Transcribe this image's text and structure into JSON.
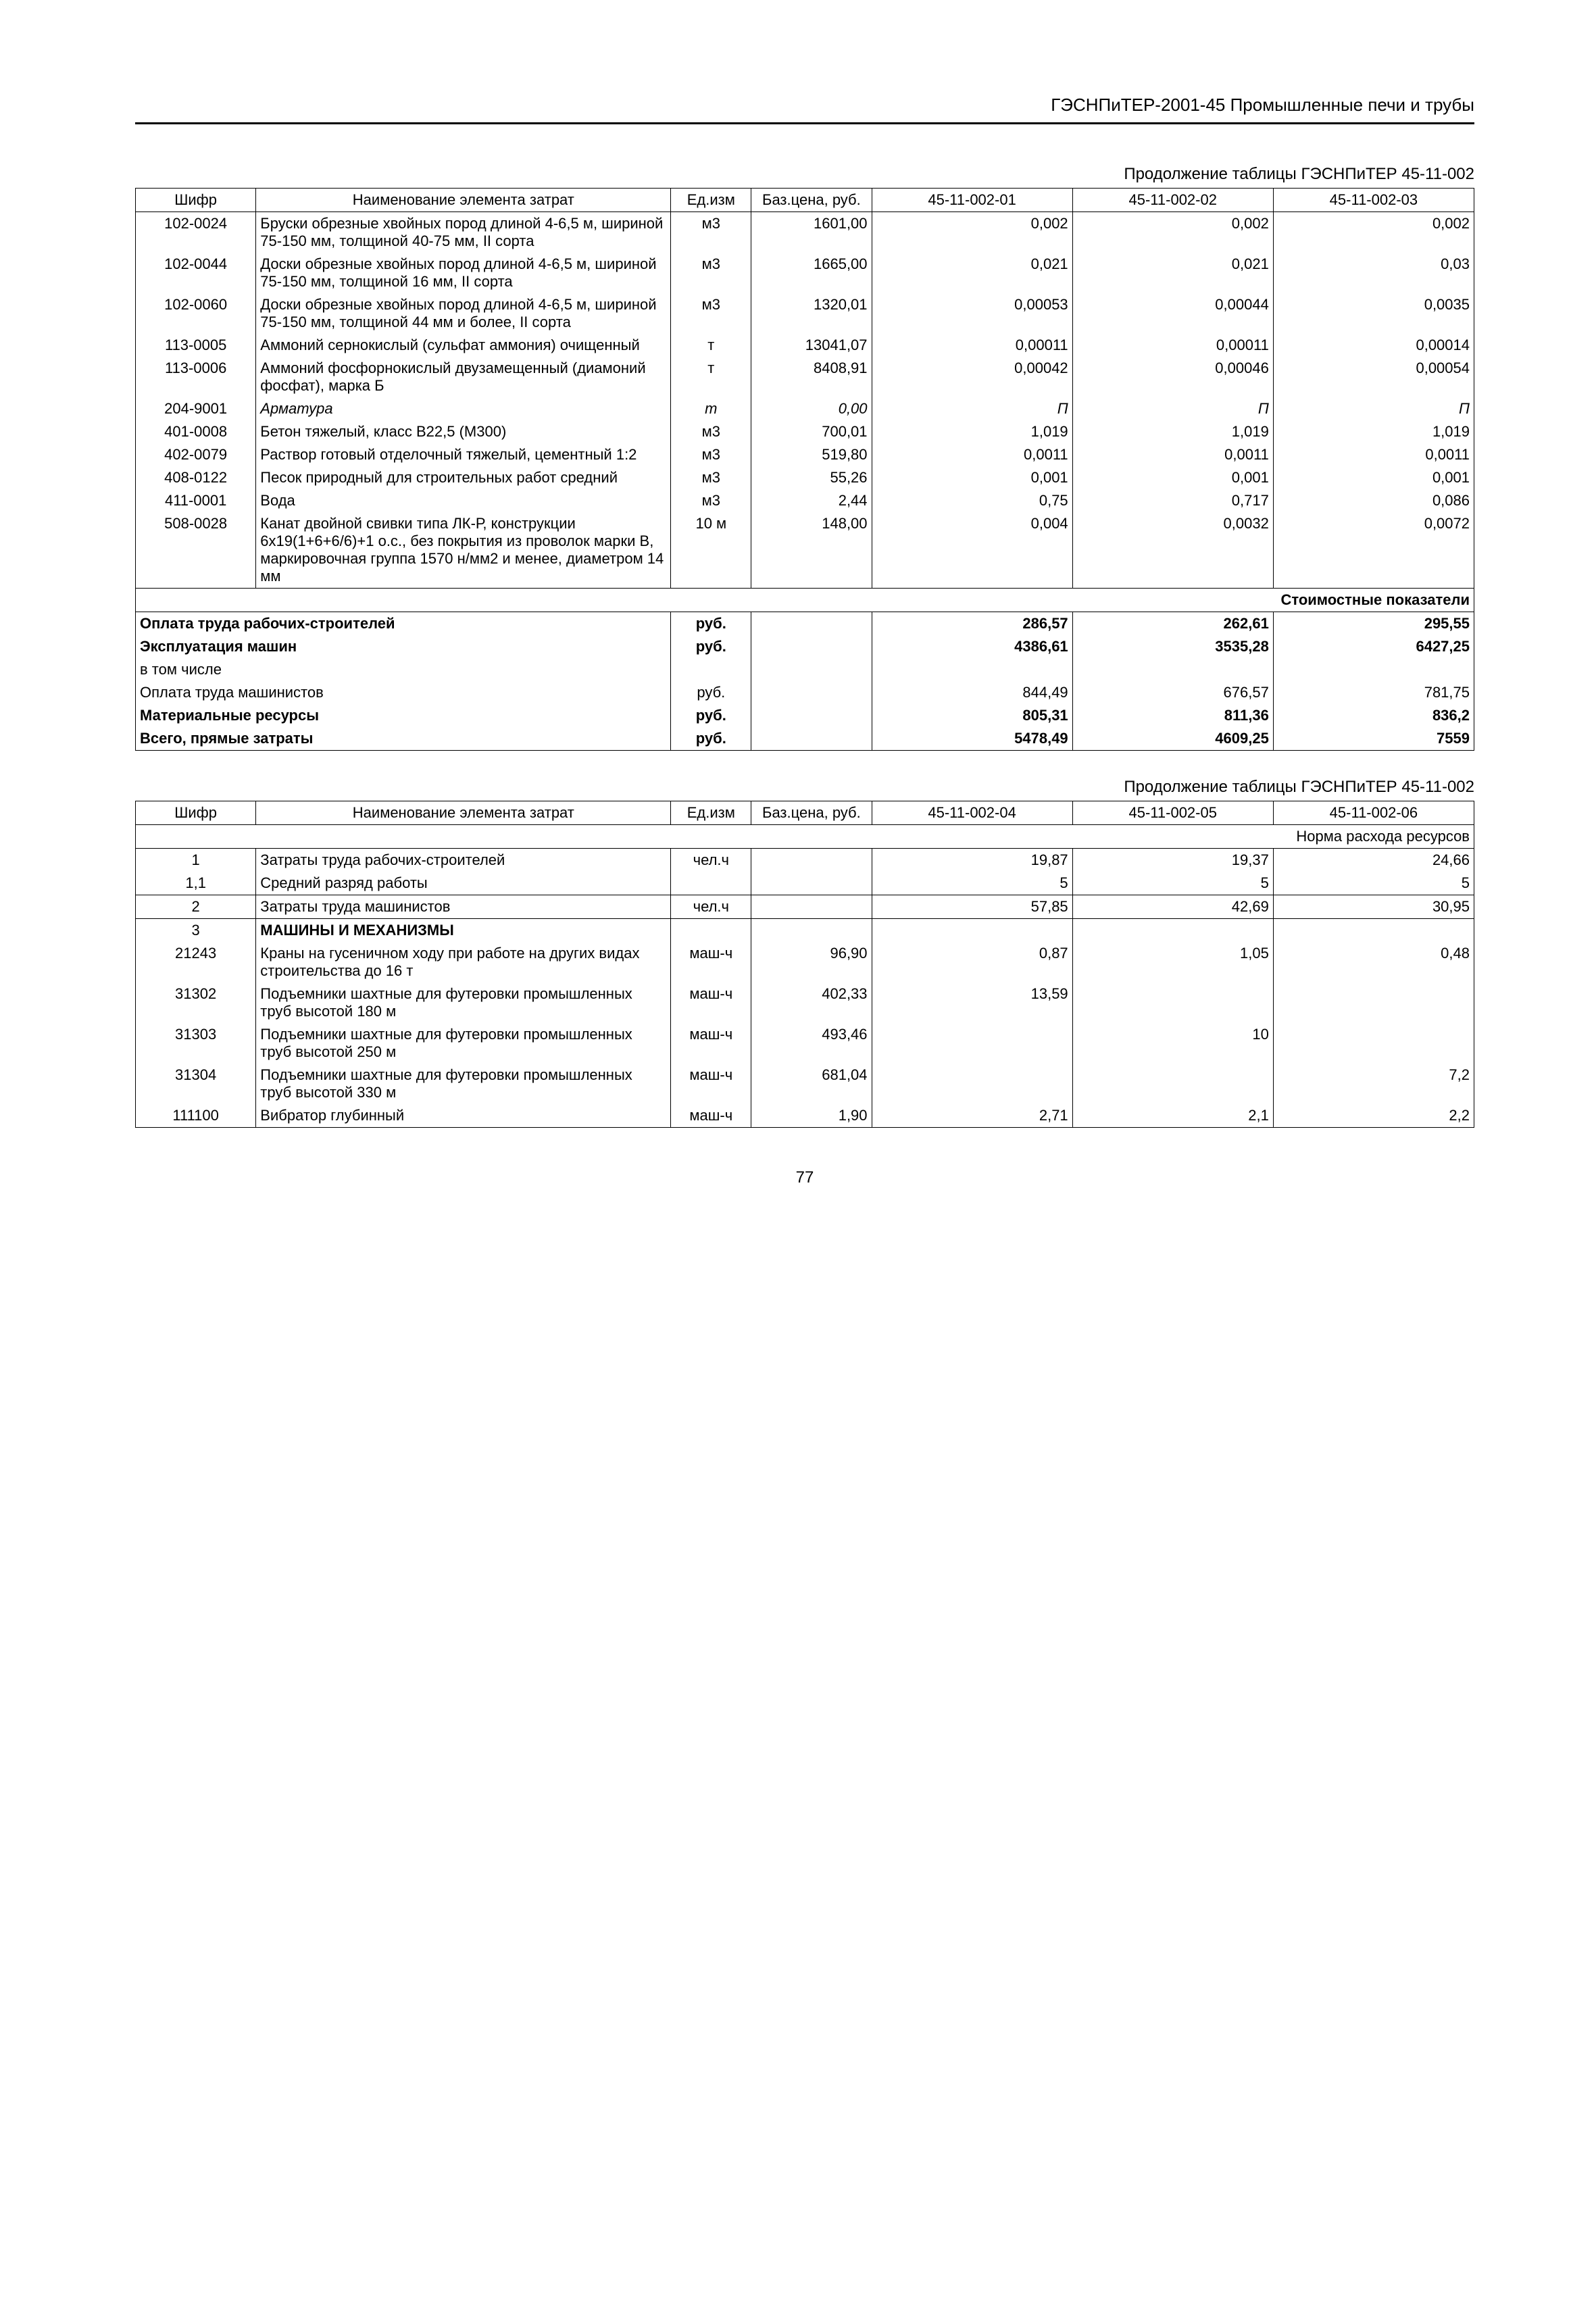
{
  "header": "ГЭСНПиТЕР-2001-45 Промышленные печи и трубы",
  "page_number": "77",
  "table1": {
    "caption": "Продолжение таблицы ГЭСНПиТЕР 45-11-002",
    "head": {
      "code": "Шифр",
      "name": "Наименование элемента затрат",
      "unit": "Ед.изм",
      "price": "Баз.цена, руб.",
      "c1": "45-11-002-01",
      "c2": "45-11-002-02",
      "c3": "45-11-002-03"
    },
    "rows": [
      {
        "code": "102-0024",
        "name": "Бруски обрезные хвойных пород длиной 4-6,5 м, шириной 75-150 мм, толщиной 40-75 мм, II сорта",
        "unit": "м3",
        "price": "1601,00",
        "v1": "0,002",
        "v2": "0,002",
        "v3": "0,002"
      },
      {
        "code": "102-0044",
        "name": "Доски обрезные хвойных пород длиной 4-6,5 м, шириной 75-150 мм, толщиной 16 мм, II сорта",
        "unit": "м3",
        "price": "1665,00",
        "v1": "0,021",
        "v2": "0,021",
        "v3": "0,03"
      },
      {
        "code": "102-0060",
        "name": "Доски обрезные хвойных пород длиной 4-6,5 м, шириной 75-150 мм, толщиной 44 мм и более, II сорта",
        "unit": "м3",
        "price": "1320,01",
        "v1": "0,00053",
        "v2": "0,00044",
        "v3": "0,0035"
      },
      {
        "code": "113-0005",
        "name": "Аммоний сернокислый (сульфат аммония) очищенный",
        "unit": "т",
        "price": "13041,07",
        "v1": "0,00011",
        "v2": "0,00011",
        "v3": "0,00014"
      },
      {
        "code": "113-0006",
        "name": "Аммоний фосфорнокислый двузамещенный (диамоний фосфат), марка Б",
        "unit": "т",
        "price": "8408,91",
        "v1": "0,00042",
        "v2": "0,00046",
        "v3": "0,00054"
      },
      {
        "code": "204-9001",
        "name": "Арматура",
        "unit": "т",
        "price": "0,00",
        "v1": "П",
        "v2": "П",
        "v3": "П",
        "italic": true
      },
      {
        "code": "401-0008",
        "name": "Бетон тяжелый, класс В22,5 (М300)",
        "unit": "м3",
        "price": "700,01",
        "v1": "1,019",
        "v2": "1,019",
        "v3": "1,019"
      },
      {
        "code": "402-0079",
        "name": "Раствор готовый отделочный тяжелый, цементный 1:2",
        "unit": "м3",
        "price": "519,80",
        "v1": "0,0011",
        "v2": "0,0011",
        "v3": "0,0011"
      },
      {
        "code": "408-0122",
        "name": "Песок природный для строительных работ средний",
        "unit": "м3",
        "price": "55,26",
        "v1": "0,001",
        "v2": "0,001",
        "v3": "0,001"
      },
      {
        "code": "411-0001",
        "name": "Вода",
        "unit": "м3",
        "price": "2,44",
        "v1": "0,75",
        "v2": "0,717",
        "v3": "0,086"
      },
      {
        "code": "508-0028",
        "name": "Канат двойной свивки типа ЛК-Р, конструкции 6х19(1+6+6/6)+1 о.с., без покрытия из проволок марки В, маркировочная группа 1570 н/мм2 и менее, диаметром 14 мм",
        "unit": "10 м",
        "price": "148,00",
        "v1": "0,004",
        "v2": "0,0032",
        "v3": "0,0072"
      }
    ],
    "cost_section_title": "Стоимостные показатели",
    "cost_rows": [
      {
        "name": "Оплата труда рабочих-строителей",
        "unit": "руб.",
        "v1": "286,57",
        "v2": "262,61",
        "v3": "295,55",
        "bold": true
      },
      {
        "name": "Эксплуатация машин",
        "unit": "руб.",
        "v1": "4386,61",
        "v2": "3535,28",
        "v3": "6427,25",
        "bold": true
      },
      {
        "name": "в том числе",
        "unit": "",
        "v1": "",
        "v2": "",
        "v3": "",
        "bold": false
      },
      {
        "name": "Оплата труда машинистов",
        "unit": "руб.",
        "v1": "844,49",
        "v2": "676,57",
        "v3": "781,75",
        "bold": false
      },
      {
        "name": "Материальные ресурсы",
        "unit": "руб.",
        "v1": "805,31",
        "v2": "811,36",
        "v3": "836,2",
        "bold": true
      },
      {
        "name": "Всего, прямые затраты",
        "unit": "руб.",
        "v1": "5478,49",
        "v2": "4609,25",
        "v3": "7559",
        "bold": true
      }
    ]
  },
  "table2": {
    "caption": "Продолжение таблицы ГЭСНПиТЕР 45-11-002",
    "head": {
      "code": "Шифр",
      "name": "Наименование элемента затрат",
      "unit": "Ед.изм",
      "price": "Баз.цена, руб.",
      "c1": "45-11-002-04",
      "c2": "45-11-002-05",
      "c3": "45-11-002-06"
    },
    "norm_section_title": "Норма расхода ресурсов",
    "rows": [
      {
        "code": "1",
        "name": "Затраты труда рабочих-строителей",
        "unit": "чел.ч",
        "price": "",
        "v1": "19,87",
        "v2": "19,37",
        "v3": "24,66",
        "topline": true
      },
      {
        "code": "1,1",
        "name": "Средний разряд работы",
        "unit": "",
        "price": "",
        "v1": "5",
        "v2": "5",
        "v3": "5"
      },
      {
        "code": "2",
        "name": "Затраты труда машинистов",
        "unit": "чел.ч",
        "price": "",
        "v1": "57,85",
        "v2": "42,69",
        "v3": "30,95",
        "topline": true
      },
      {
        "code": "3",
        "name": "МАШИНЫ И МЕХАНИЗМЫ",
        "unit": "",
        "price": "",
        "v1": "",
        "v2": "",
        "v3": "",
        "bold": true,
        "topline": true
      },
      {
        "code": "21243",
        "name": "Краны на гусеничном ходу при работе на других видах строительства до 16 т",
        "unit": "маш-ч",
        "price": "96,90",
        "v1": "0,87",
        "v2": "1,05",
        "v3": "0,48"
      },
      {
        "code": "31302",
        "name": "Подъемники шахтные для футеровки промышленных труб высотой 180 м",
        "unit": "маш-ч",
        "price": "402,33",
        "v1": "13,59",
        "v2": "",
        "v3": ""
      },
      {
        "code": "31303",
        "name": "Подъемники шахтные для футеровки промышленных труб высотой 250 м",
        "unit": "маш-ч",
        "price": "493,46",
        "v1": "",
        "v2": "10",
        "v3": ""
      },
      {
        "code": "31304",
        "name": "Подъемники шахтные для футеровки промышленных труб высотой 330 м",
        "unit": "маш-ч",
        "price": "681,04",
        "v1": "",
        "v2": "",
        "v3": "7,2"
      },
      {
        "code": "111100",
        "name": "Вибратор глубинный",
        "unit": "маш-ч",
        "price": "1,90",
        "v1": "2,71",
        "v2": "2,1",
        "v3": "2,2"
      }
    ]
  }
}
